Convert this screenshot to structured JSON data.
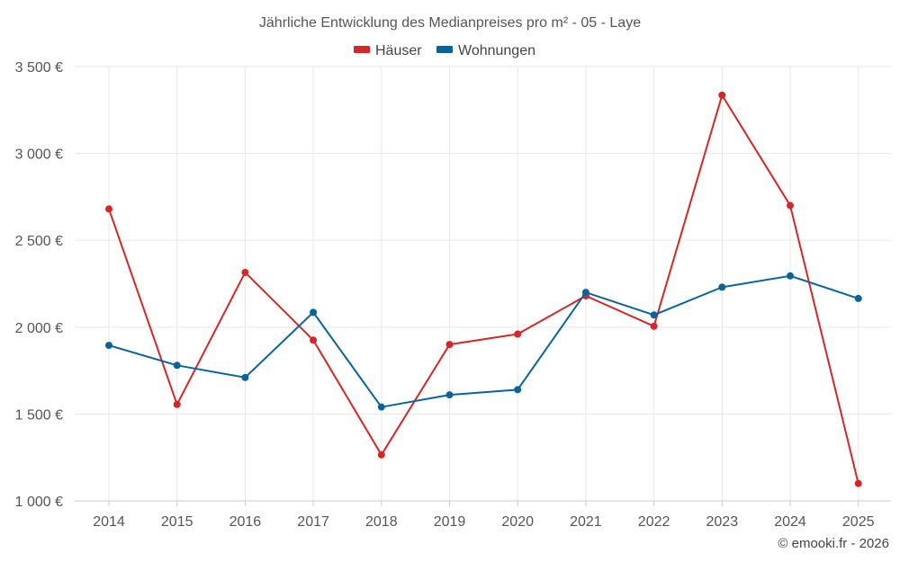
{
  "chart_data": {
    "type": "line",
    "title": "Jährliche Entwicklung des Medianpreises pro m² - 05 - Laye",
    "categories": [
      "2014",
      "2015",
      "2016",
      "2017",
      "2018",
      "2019",
      "2020",
      "2021",
      "2022",
      "2023",
      "2024",
      "2025"
    ],
    "series": [
      {
        "name": "Häuser",
        "color": "#d62728",
        "values": [
          2680,
          1555,
          2315,
          1925,
          1265,
          1900,
          1960,
          2180,
          2005,
          3335,
          2700,
          1100
        ]
      },
      {
        "name": "Wohnungen",
        "color": "#08649a",
        "values": [
          1895,
          1780,
          1710,
          2085,
          1540,
          1610,
          1640,
          2200,
          2070,
          2230,
          2295,
          2165
        ]
      }
    ],
    "ylim": [
      1000,
      3500
    ],
    "yticks": [
      1000,
      1500,
      2000,
      2500,
      3000,
      3500
    ],
    "ytick_labels": [
      "1 000 €",
      "1 500 €",
      "2 000 €",
      "2 500 €",
      "3 000 €",
      "3 500 €"
    ],
    "grid": true,
    "legend_position": "top-center",
    "xlabel": "",
    "ylabel": ""
  },
  "credit": "© emooki.fr - 2026"
}
